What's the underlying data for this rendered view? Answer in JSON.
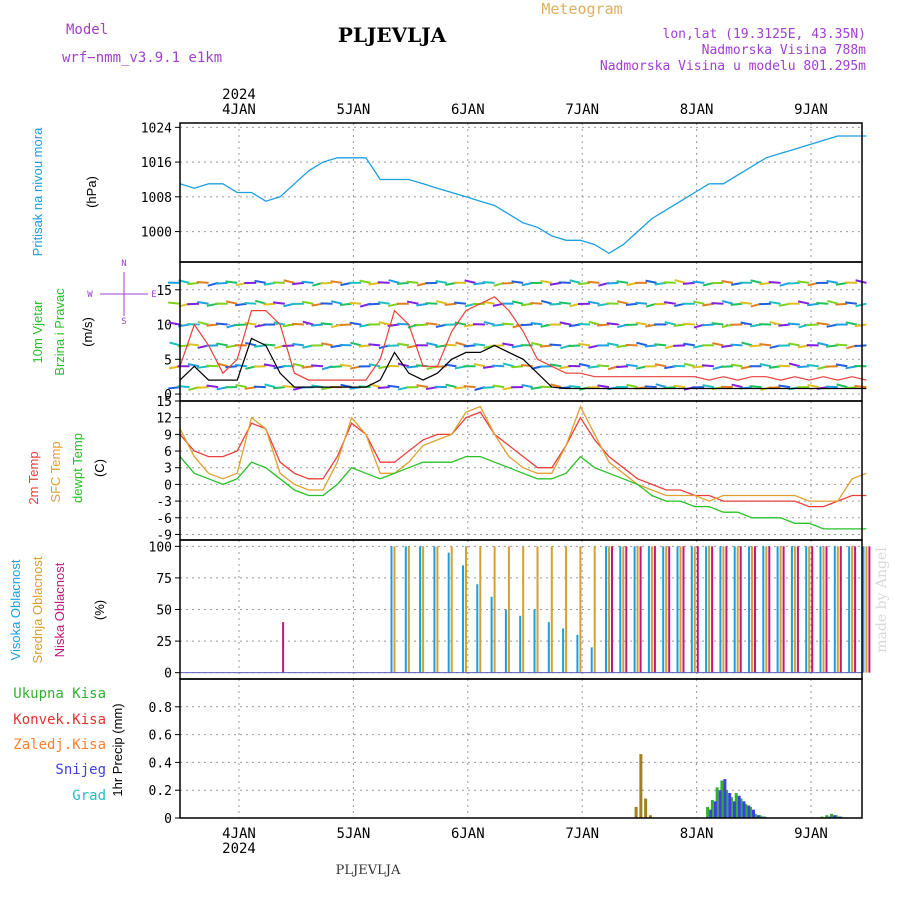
{
  "header": {
    "model_label": "Model",
    "model_name": "wrf−nmm_v3.9.1  e1km",
    "station": "PLJEVLJA",
    "meteogram": "Meteogram",
    "lonlat": "lon,lat (19.3125E, 43.35N)",
    "elevation": "Nadmorska Visina 788m",
    "model_elevation": "Nadmorska Visina u modelu 801.295m",
    "footer_station": "PLJEVLJA",
    "watermark": "made by Angel"
  },
  "colors": {
    "pressure": "#1a9fe0",
    "t2m": "#e8403a",
    "sfc": "#e0a030",
    "dew": "#28c028",
    "wind_avg": "#000000",
    "gust": "#e8403a",
    "high_cloud": "#1aa0e0",
    "mid_cloud": "#d4a030",
    "low_cloud": "#c0187a",
    "total_precip": "#30b030",
    "conv_precip": "#e83030",
    "frz_precip": "#ff8030",
    "snow": "#4040e0",
    "hail": "#20c0c0",
    "label_purple": "#a040d0",
    "meteogram_gold": "#e0b060"
  },
  "chart_data": [
    {
      "type": "line",
      "panel": "pressure",
      "ylabel_name": "Pritisak na nivou mora",
      "ylabel_unit": "(hPa)",
      "ylim": [
        993,
        1025
      ],
      "yticks": [
        1000,
        1008,
        1016,
        1024
      ],
      "x_axis_top": {
        "year": "2024",
        "ticks": [
          "4JAN",
          "5JAN",
          "6JAN",
          "7JAN",
          "8JAN",
          "9JAN"
        ]
      },
      "x": [
        0,
        3,
        6,
        9,
        12,
        15,
        18,
        21,
        24,
        27,
        30,
        33,
        36,
        39,
        42,
        45,
        48,
        51,
        54,
        57,
        60,
        63,
        66,
        69,
        72,
        75,
        78,
        81,
        84,
        87,
        90,
        93,
        96,
        99,
        102,
        105,
        108,
        111,
        114,
        117,
        120,
        123,
        126,
        129,
        132,
        135,
        138,
        141,
        144
      ],
      "series": [
        {
          "name": "",
          "values": [
            1011,
            1010,
            1011,
            1011,
            1009,
            1009,
            1007,
            1008,
            1011,
            1014,
            1016,
            1017,
            1017,
            1017,
            1012,
            1012,
            1012,
            1011,
            1010,
            1009,
            1008,
            1007,
            1006,
            1004,
            1002,
            1001,
            999,
            998,
            998,
            997,
            995,
            997,
            1000,
            1003,
            1005,
            1007,
            1009,
            1011,
            1011,
            1013,
            1015,
            1017,
            1018,
            1019,
            1020,
            1021,
            1022,
            1022,
            1022
          ]
        }
      ]
    },
    {
      "type": "line",
      "panel": "wind",
      "ylabel_name_1": "10m Vjetar",
      "ylabel_name_2": "Brzina i Pravac",
      "ylabel_unit": "(m/s)",
      "compass": {
        "n": "N",
        "s": "S",
        "w": "W",
        "e": "E"
      },
      "ylim": [
        -1,
        19
      ],
      "yticks": [
        0,
        5,
        10,
        15
      ],
      "x": [
        0,
        3,
        6,
        9,
        12,
        15,
        18,
        21,
        24,
        27,
        30,
        33,
        36,
        39,
        42,
        45,
        48,
        51,
        54,
        57,
        60,
        63,
        66,
        69,
        72,
        75,
        78,
        81,
        84,
        87,
        90,
        93,
        96,
        99,
        102,
        105,
        108,
        111,
        114,
        117,
        120,
        123,
        126,
        129,
        132,
        135,
        138,
        141,
        144
      ],
      "series": [
        {
          "name": "",
          "role": "avg",
          "values": [
            2,
            4,
            2,
            2,
            2,
            8,
            7,
            3,
            1,
            1,
            1,
            1,
            1,
            1,
            2,
            6,
            3,
            2,
            3,
            5,
            6,
            6,
            7,
            6,
            5,
            3,
            1,
            0.8,
            0.8,
            0.8,
            0.8,
            0.8,
            0.8,
            0.8,
            0.8,
            0.8,
            0.8,
            0.8,
            0.8,
            0.8,
            0.8,
            0.8,
            0.8,
            0.8,
            0.8,
            0.8,
            0.8,
            0.8,
            0.8
          ]
        },
        {
          "name": "",
          "role": "gust",
          "values": [
            4,
            10,
            7,
            3,
            5,
            12,
            12,
            10,
            3,
            2,
            2,
            2,
            2,
            2,
            5,
            12,
            10,
            4,
            4,
            9,
            12,
            13,
            14,
            12,
            9,
            5,
            4,
            3,
            3,
            2.5,
            2.5,
            2.5,
            2.5,
            2.5,
            2.5,
            2.5,
            2.5,
            2,
            2.5,
            2,
            2.5,
            2.5,
            2,
            2.5,
            2,
            2.5,
            2,
            2.5,
            2
          ]
        }
      ]
    },
    {
      "type": "line",
      "panel": "temperature",
      "ylabel_name_1": "2m Temp",
      "ylabel_name_2": "SFC Temp",
      "ylabel_name_3": "dewpt Temp",
      "ylabel_unit": "(C)",
      "ylim": [
        -10,
        15
      ],
      "yticks": [
        -9,
        -6,
        -3,
        0,
        3,
        6,
        9,
        12,
        15
      ],
      "x": [
        0,
        3,
        6,
        9,
        12,
        15,
        18,
        21,
        24,
        27,
        30,
        33,
        36,
        39,
        42,
        45,
        48,
        51,
        54,
        57,
        60,
        63,
        66,
        69,
        72,
        75,
        78,
        81,
        84,
        87,
        90,
        93,
        96,
        99,
        102,
        105,
        108,
        111,
        114,
        117,
        120,
        123,
        126,
        129,
        132,
        135,
        138,
        141,
        144
      ],
      "series": [
        {
          "name": "",
          "role": "t2m",
          "values": [
            9,
            6,
            5,
            5,
            6,
            11,
            10,
            4,
            2,
            1,
            1,
            5,
            11,
            9,
            4,
            4,
            6,
            8,
            9,
            9,
            12,
            13,
            9,
            7,
            5,
            3,
            3,
            7,
            12,
            8,
            5,
            3,
            1,
            0,
            -1,
            -1,
            -2,
            -2,
            -3,
            -3,
            -3,
            -3,
            -3,
            -3,
            -4,
            -4,
            -3,
            -2,
            -2
          ]
        },
        {
          "name": "",
          "role": "sfc",
          "values": [
            10,
            5,
            2,
            1,
            2,
            12,
            10,
            2,
            0,
            -1,
            -1,
            4,
            12,
            9,
            2,
            2,
            4,
            7,
            8,
            9,
            13,
            14,
            9,
            5,
            3,
            2,
            2,
            7,
            14,
            9,
            4,
            2,
            0,
            -1,
            -2,
            -2,
            -2,
            -3,
            -2,
            -2,
            -2,
            -2,
            -2,
            -2,
            -3,
            -3,
            -3,
            1,
            2
          ]
        },
        {
          "name": "",
          "role": "dew",
          "values": [
            5,
            2,
            1,
            0,
            1,
            4,
            3,
            1,
            -1,
            -2,
            -2,
            0,
            3,
            2,
            1,
            2,
            3,
            4,
            4,
            4,
            5,
            5,
            4,
            3,
            2,
            1,
            1,
            2,
            5,
            3,
            2,
            1,
            0,
            -2,
            -3,
            -3,
            -4,
            -4,
            -5,
            -5,
            -6,
            -6,
            -6,
            -7,
            -7,
            -8,
            -8,
            -8,
            -8
          ]
        }
      ]
    },
    {
      "type": "bar",
      "panel": "clouds",
      "ylabel_name_1": "Visoka Oblacnost",
      "ylabel_name_2": "Srednja Oblacnost",
      "ylabel_name_3": "Niska Oblacnost",
      "ylabel_unit": "(%)",
      "ylim": [
        -5,
        105
      ],
      "yticks": [
        0,
        25,
        50,
        75,
        100
      ],
      "x": [
        0,
        3,
        6,
        9,
        12,
        15,
        18,
        21,
        24,
        27,
        30,
        33,
        36,
        39,
        42,
        45,
        48,
        51,
        54,
        57,
        60,
        63,
        66,
        69,
        72,
        75,
        78,
        81,
        84,
        87,
        90,
        93,
        96,
        99,
        102,
        105,
        108,
        111,
        114,
        117,
        120,
        123,
        126,
        129,
        132,
        135,
        138,
        141,
        144
      ],
      "series": [
        {
          "name": "",
          "role": "high",
          "values": [
            0,
            0,
            0,
            0,
            0,
            0,
            0,
            0,
            0,
            0,
            0,
            0,
            0,
            0,
            0,
            100,
            100,
            100,
            100,
            95,
            85,
            70,
            60,
            50,
            45,
            50,
            40,
            35,
            30,
            20,
            100,
            100,
            100,
            100,
            100,
            100,
            100,
            100,
            100,
            100,
            100,
            100,
            100,
            100,
            100,
            100,
            100,
            100,
            100
          ]
        },
        {
          "name": "",
          "role": "mid",
          "values": [
            0,
            0,
            0,
            0,
            0,
            0,
            0,
            0,
            0,
            0,
            0,
            0,
            0,
            0,
            0,
            100,
            100,
            100,
            100,
            100,
            100,
            100,
            100,
            100,
            100,
            100,
            100,
            100,
            100,
            100,
            100,
            100,
            100,
            100,
            100,
            100,
            100,
            100,
            100,
            100,
            100,
            100,
            100,
            100,
            100,
            100,
            100,
            100,
            100
          ]
        },
        {
          "name": "",
          "role": "low",
          "values": [
            0,
            0,
            0,
            0,
            0,
            0,
            0,
            40,
            0,
            0,
            0,
            0,
            0,
            0,
            0,
            0,
            0,
            0,
            0,
            0,
            0,
            0,
            0,
            0,
            0,
            0,
            0,
            0,
            0,
            0,
            100,
            100,
            100,
            100,
            100,
            100,
            100,
            100,
            100,
            100,
            100,
            100,
            100,
            100,
            100,
            100,
            100,
            100,
            100
          ]
        }
      ]
    },
    {
      "type": "bar",
      "panel": "precip",
      "legend": [
        "Ukupna  Kisa",
        "Konvek.Kisa",
        "Zaledj.Kisa",
        "Snijeg",
        "Grad"
      ],
      "ylabel_unit": "1hr Precip (mm)",
      "ylim": [
        0,
        1.0
      ],
      "yticks": [
        0,
        0.2,
        0.4,
        0.6,
        0.8
      ],
      "x_axis_bottom": {
        "year": "2024",
        "ticks": [
          "4JAN",
          "5JAN",
          "6JAN",
          "7JAN",
          "8JAN",
          "9JAN"
        ]
      },
      "x": [
        96,
        97,
        98,
        99,
        111,
        112,
        113,
        114,
        115,
        116,
        117,
        118,
        119,
        120,
        121,
        122,
        123,
        135,
        136,
        137,
        138,
        139
      ],
      "series": [
        {
          "name": "",
          "role": "total",
          "values": [
            0.08,
            0.46,
            0.14,
            0.02,
            0.08,
            0.13,
            0.22,
            0.27,
            0.2,
            0.15,
            0.18,
            0.14,
            0.1,
            0.08,
            0.03,
            0.02,
            0.01,
            0.01,
            0.02,
            0.03,
            0.02,
            0.01
          ]
        },
        {
          "name": "",
          "role": "snow",
          "values": [
            0,
            0,
            0,
            0,
            0.06,
            0.12,
            0.2,
            0.28,
            0.18,
            0.12,
            0.16,
            0.12,
            0.09,
            0.06,
            0.02,
            0.01,
            0,
            0,
            0.01,
            0.02,
            0.01,
            0
          ]
        }
      ]
    }
  ]
}
